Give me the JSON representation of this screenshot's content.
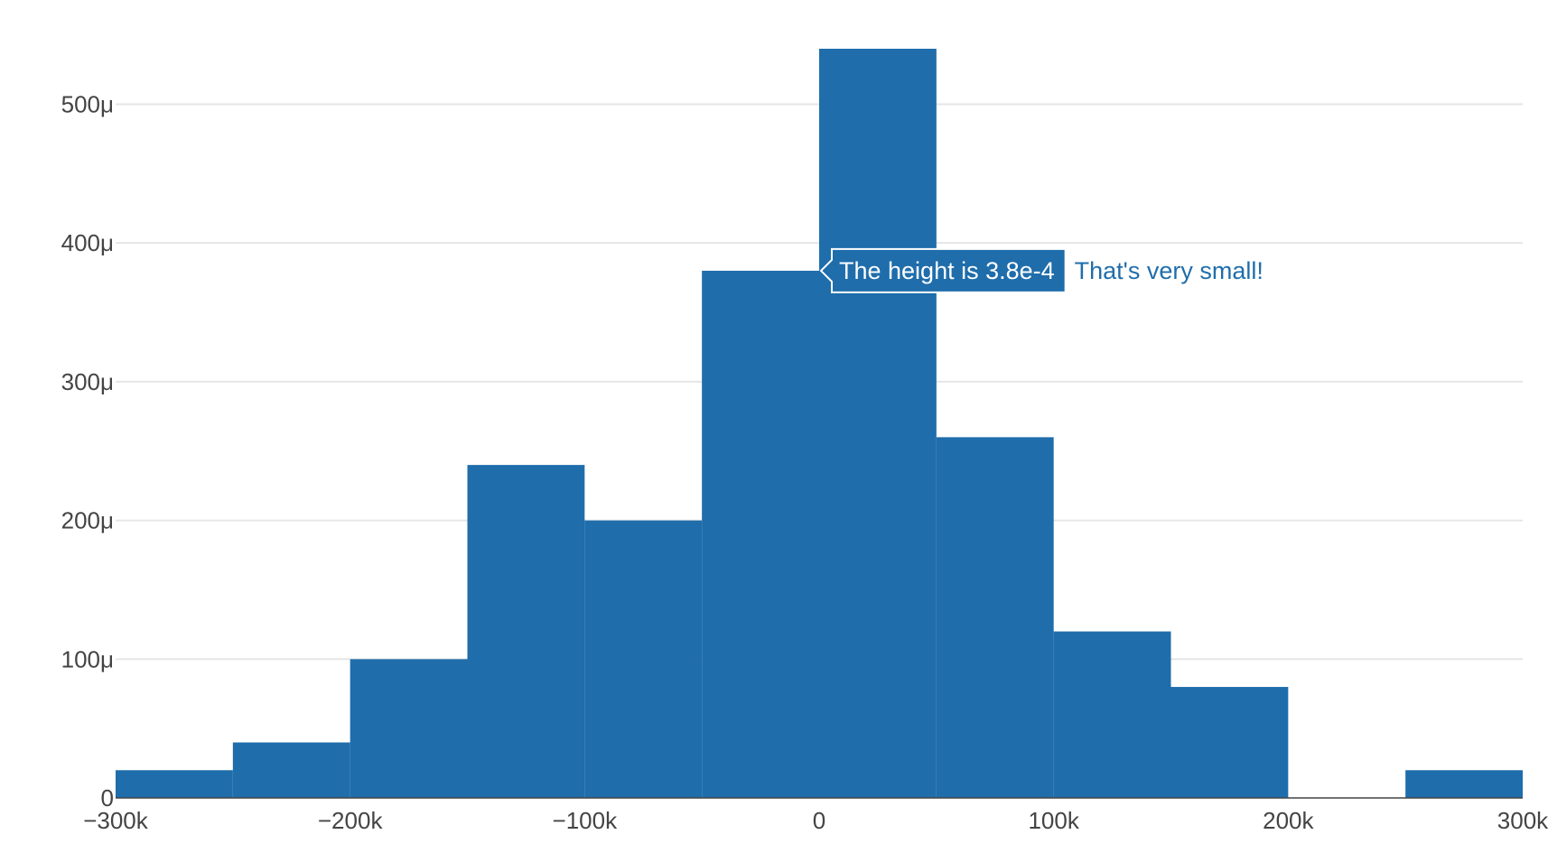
{
  "chart_data": {
    "type": "bar",
    "title": "",
    "xlabel": "",
    "ylabel": "",
    "bin_width": 50000,
    "bins": [
      {
        "start": -300000,
        "end": -250000,
        "value": 2e-05
      },
      {
        "start": -250000,
        "end": -200000,
        "value": 4e-05
      },
      {
        "start": -200000,
        "end": -150000,
        "value": 0.0001
      },
      {
        "start": -150000,
        "end": -100000,
        "value": 0.00024
      },
      {
        "start": -100000,
        "end": -50000,
        "value": 0.0002
      },
      {
        "start": -50000,
        "end": 0,
        "value": 0.00038
      },
      {
        "start": 0,
        "end": 50000,
        "value": 0.00054
      },
      {
        "start": 50000,
        "end": 100000,
        "value": 0.00026
      },
      {
        "start": 100000,
        "end": 150000,
        "value": 0.00012
      },
      {
        "start": 150000,
        "end": 200000,
        "value": 8e-05
      },
      {
        "start": 200000,
        "end": 250000,
        "value": 0
      },
      {
        "start": 250000,
        "end": 300000,
        "value": 2e-05
      }
    ],
    "xlim": [
      -300000,
      300000
    ],
    "ylim": [
      0,
      0.00054
    ],
    "x_ticks": [
      {
        "value": -300000,
        "label": "−300k"
      },
      {
        "value": -200000,
        "label": "−200k"
      },
      {
        "value": -100000,
        "label": "−100k"
      },
      {
        "value": 0,
        "label": "0"
      },
      {
        "value": 100000,
        "label": "100k"
      },
      {
        "value": 200000,
        "label": "200k"
      },
      {
        "value": 300000,
        "label": "300k"
      }
    ],
    "y_ticks": [
      {
        "value": 0,
        "label": "0"
      },
      {
        "value": 0.0001,
        "label": "100μ"
      },
      {
        "value": 0.0002,
        "label": "200μ"
      },
      {
        "value": 0.0003,
        "label": "300μ"
      },
      {
        "value": 0.0004,
        "label": "400μ"
      },
      {
        "value": 0.0005,
        "label": "500μ"
      }
    ],
    "grid": true,
    "colors": {
      "bar": "#1f6dab",
      "grid": "#e6e6e6",
      "axis_line": "#444444",
      "tick_text": "#444444",
      "hover_text": "#ffffff"
    },
    "hover": {
      "bin_index": 5,
      "text": "The height is 3.8e-4",
      "extra": "That's very small!"
    }
  }
}
